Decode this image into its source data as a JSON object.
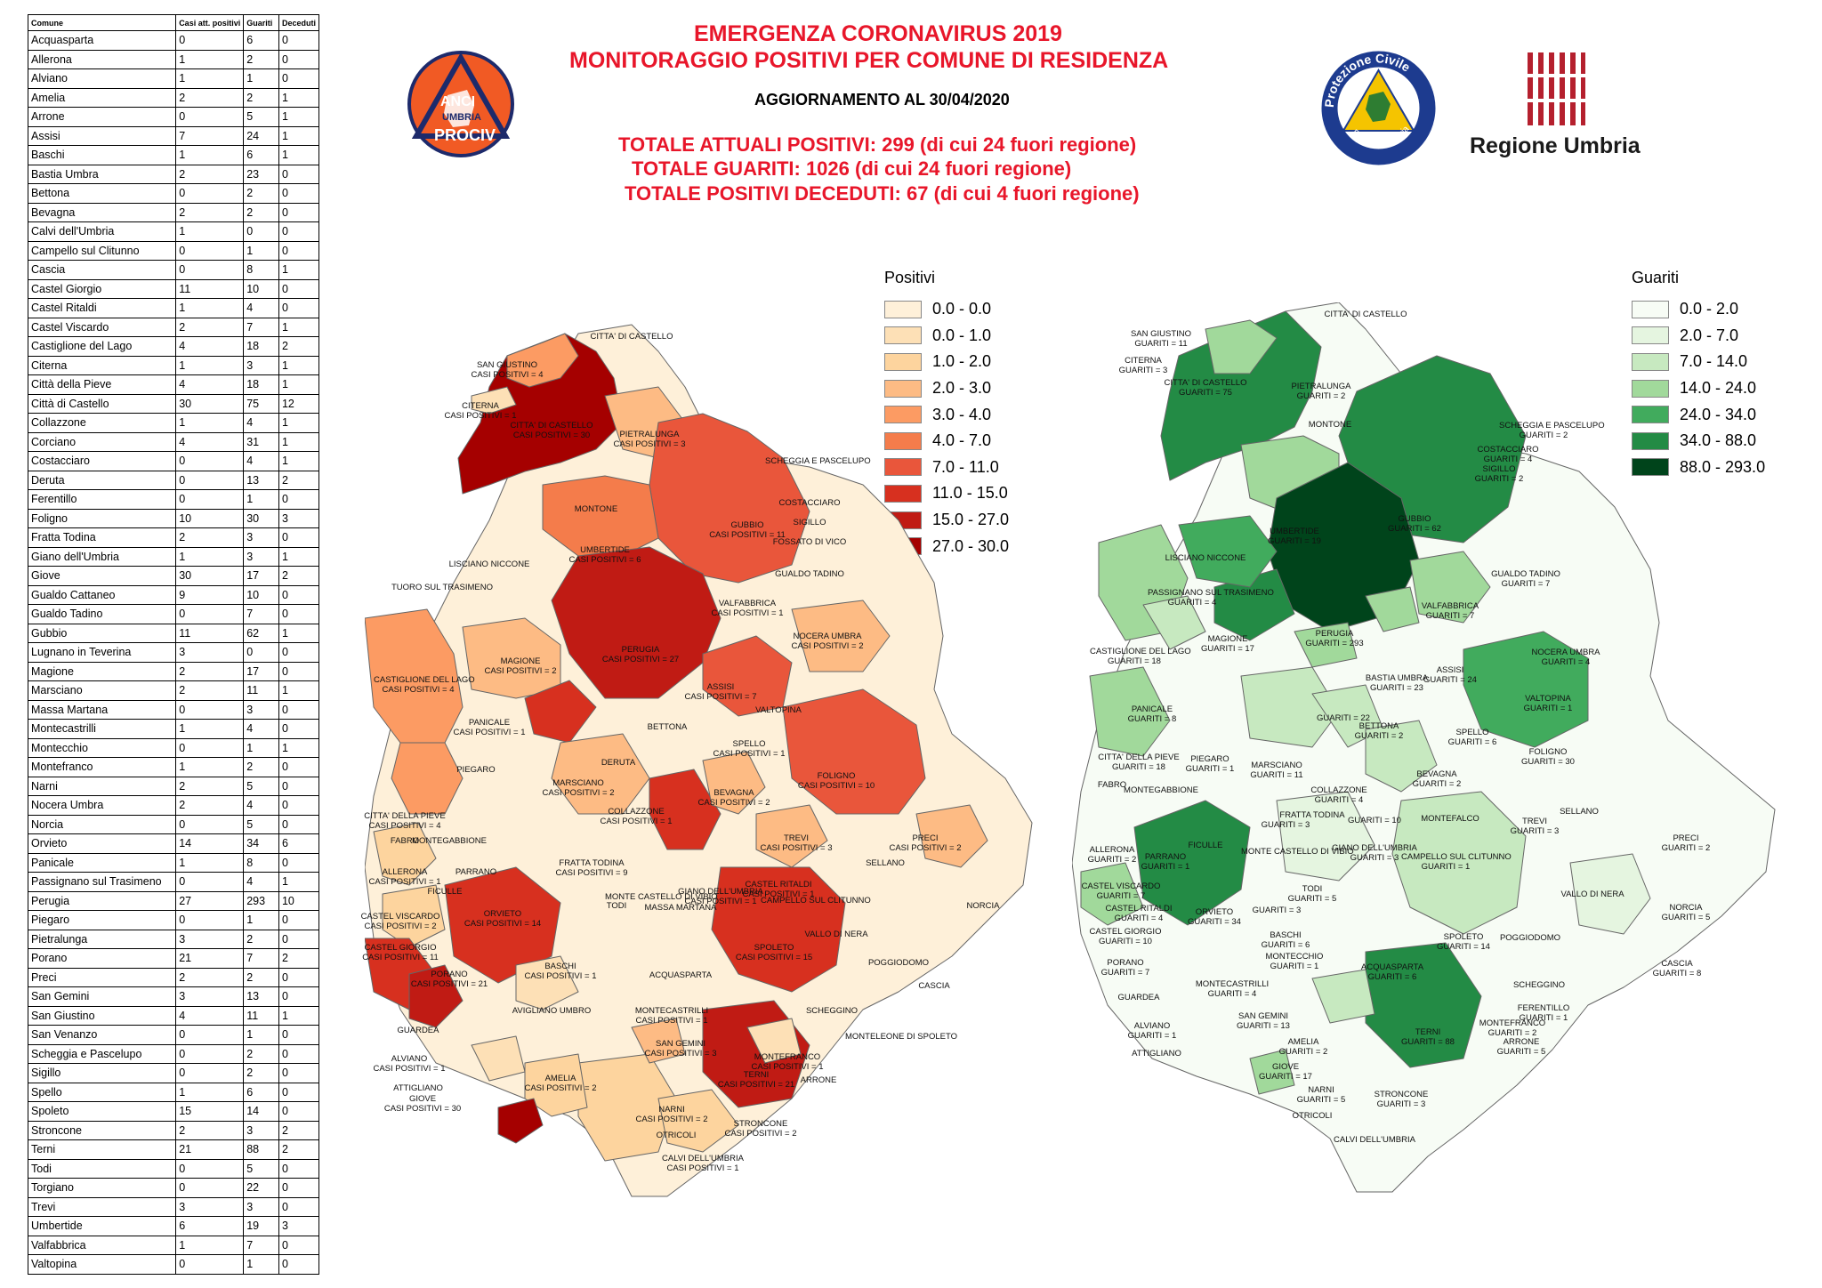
{
  "table": {
    "headers": [
      "Comune",
      "Casi att. positivi",
      "Guariti",
      "Deceduti"
    ],
    "rows": [
      [
        "Acquasparta",
        "0",
        "6",
        "0"
      ],
      [
        "Allerona",
        "1",
        "2",
        "0"
      ],
      [
        "Alviano",
        "1",
        "1",
        "0"
      ],
      [
        "Amelia",
        "2",
        "2",
        "1"
      ],
      [
        "Arrone",
        "0",
        "5",
        "1"
      ],
      [
        "Assisi",
        "7",
        "24",
        "1"
      ],
      [
        "Baschi",
        "1",
        "6",
        "1"
      ],
      [
        "Bastia Umbra",
        "2",
        "23",
        "0"
      ],
      [
        "Bettona",
        "0",
        "2",
        "0"
      ],
      [
        "Bevagna",
        "2",
        "2",
        "0"
      ],
      [
        "Calvi dell'Umbria",
        "1",
        "0",
        "0"
      ],
      [
        "Campello sul Clitunno",
        "0",
        "1",
        "0"
      ],
      [
        "Cascia",
        "0",
        "8",
        "1"
      ],
      [
        "Castel Giorgio",
        "11",
        "10",
        "0"
      ],
      [
        "Castel Ritaldi",
        "1",
        "4",
        "0"
      ],
      [
        "Castel Viscardo",
        "2",
        "7",
        "1"
      ],
      [
        "Castiglione del Lago",
        "4",
        "18",
        "2"
      ],
      [
        "Citerna",
        "1",
        "3",
        "1"
      ],
      [
        "Città  della Pieve",
        "4",
        "18",
        "1"
      ],
      [
        "Città  di Castello",
        "30",
        "75",
        "12"
      ],
      [
        "Collazzone",
        "1",
        "4",
        "1"
      ],
      [
        "Corciano",
        "4",
        "31",
        "1"
      ],
      [
        "Costacciaro",
        "0",
        "4",
        "1"
      ],
      [
        "Deruta",
        "0",
        "13",
        "2"
      ],
      [
        "Ferentillo",
        "0",
        "1",
        "0"
      ],
      [
        "Foligno",
        "10",
        "30",
        "3"
      ],
      [
        "Fratta Todina",
        "2",
        "3",
        "0"
      ],
      [
        "Giano dell'Umbria",
        "1",
        "3",
        "1"
      ],
      [
        "Giove",
        "30",
        "17",
        "2"
      ],
      [
        "Gualdo Cattaneo",
        "9",
        "10",
        "0"
      ],
      [
        "Gualdo Tadino",
        "0",
        "7",
        "0"
      ],
      [
        "Gubbio",
        "11",
        "62",
        "1"
      ],
      [
        "Lugnano in Teverina",
        "3",
        "0",
        "0"
      ],
      [
        "Magione",
        "2",
        "17",
        "0"
      ],
      [
        "Marsciano",
        "2",
        "11",
        "1"
      ],
      [
        "Massa Martana",
        "0",
        "3",
        "0"
      ],
      [
        "Montecastrilli",
        "1",
        "4",
        "0"
      ],
      [
        "Montecchio",
        "0",
        "1",
        "1"
      ],
      [
        "Montefranco",
        "1",
        "2",
        "0"
      ],
      [
        "Narni",
        "2",
        "5",
        "0"
      ],
      [
        "Nocera Umbra",
        "2",
        "4",
        "0"
      ],
      [
        "Norcia",
        "0",
        "5",
        "0"
      ],
      [
        "Orvieto",
        "14",
        "34",
        "6"
      ],
      [
        "Panicale",
        "1",
        "8",
        "0"
      ],
      [
        "Passignano sul Trasimeno",
        "0",
        "4",
        "1"
      ],
      [
        "Perugia",
        "27",
        "293",
        "10"
      ],
      [
        "Piegaro",
        "0",
        "1",
        "0"
      ],
      [
        "Pietralunga",
        "3",
        "2",
        "0"
      ],
      [
        "Porano",
        "21",
        "7",
        "2"
      ],
      [
        "Preci",
        "2",
        "2",
        "0"
      ],
      [
        "San Gemini",
        "3",
        "13",
        "0"
      ],
      [
        "San Giustino",
        "4",
        "11",
        "1"
      ],
      [
        "San Venanzo",
        "0",
        "1",
        "0"
      ],
      [
        "Scheggia e Pascelupo",
        "0",
        "2",
        "0"
      ],
      [
        "Sigillo",
        "0",
        "2",
        "0"
      ],
      [
        "Spello",
        "1",
        "6",
        "0"
      ],
      [
        "Spoleto",
        "15",
        "14",
        "0"
      ],
      [
        "Stroncone",
        "2",
        "3",
        "2"
      ],
      [
        "Terni",
        "21",
        "88",
        "2"
      ],
      [
        "Todi",
        "0",
        "5",
        "0"
      ],
      [
        "Torgiano",
        "0",
        "22",
        "0"
      ],
      [
        "Trevi",
        "3",
        "3",
        "0"
      ],
      [
        "Umbertide",
        "6",
        "19",
        "3"
      ],
      [
        "Valfabbrica",
        "1",
        "7",
        "0"
      ],
      [
        "Valtopina",
        "0",
        "1",
        "0"
      ]
    ]
  },
  "header": {
    "title_line1": "EMERGENZA CORONAVIRUS 2019",
    "title_line2": "MONITORAGGIO POSITIVI PER COMUNE DI RESIDENZA",
    "update": "AGGIORNAMENTO AL 30/04/2020",
    "total_positives": "TOTALE ATTUALI POSITIVI: 299 (di cui 24 fuori regione)",
    "total_recovered": "TOTALE GUARITI: 1026 (di cui 24 fuori regione)",
    "total_deceased": "TOTALE POSITIVI DECEDUTI: 67 (di cui 4 fuori regione)"
  },
  "logos": {
    "anci": {
      "line1": "ANCI",
      "line2": "UMBRIA",
      "line3": "PROCIV",
      "color": "#f15a24"
    },
    "protezione_civile": {
      "top": "Protezione Civile",
      "bottom": "Regione Umbria"
    },
    "regione": {
      "name": "Regione Umbria",
      "color": "#b5202e"
    }
  },
  "legend_positivi": {
    "title": "Positivi",
    "items": [
      {
        "label": "0.0 - 0.0",
        "color": "#fef0d9"
      },
      {
        "label": "0.0 - 1.0",
        "color": "#fde0b6"
      },
      {
        "label": "1.0 - 2.0",
        "color": "#fdd49e"
      },
      {
        "label": "2.0 - 3.0",
        "color": "#fdbb84"
      },
      {
        "label": "3.0 - 4.0",
        "color": "#fc9b63"
      },
      {
        "label": "4.0 - 7.0",
        "color": "#f47c4b"
      },
      {
        "label": "7.0 - 11.0",
        "color": "#e9563b"
      },
      {
        "label": "11.0 - 15.0",
        "color": "#d7301f"
      },
      {
        "label": "15.0 - 27.0",
        "color": "#c01b14"
      },
      {
        "label": "27.0 - 30.0",
        "color": "#a50000"
      }
    ]
  },
  "legend_guariti": {
    "title": "Guariti",
    "items": [
      {
        "label": "0.0 - 2.0",
        "color": "#f7fcf5"
      },
      {
        "label": "2.0 - 7.0",
        "color": "#e5f5e0"
      },
      {
        "label": "7.0 - 14.0",
        "color": "#c7e9c0"
      },
      {
        "label": "14.0 - 24.0",
        "color": "#a1d99b"
      },
      {
        "label": "24.0 - 34.0",
        "color": "#41ab5d"
      },
      {
        "label": "34.0 - 88.0",
        "color": "#238b45"
      },
      {
        "label": "88.0 - 293.0",
        "color": "#00441b"
      }
    ]
  },
  "map_positivi_labels": [
    "CITTA' DI CASTELLO",
    "SAN GIUSTINO",
    "CASI POSITIVI = 4",
    "CITERNA",
    "CASI POSITIVI = 1",
    "CITTA' DI CASTELLO",
    "CASI POSITIVI = 30",
    "PIETRALUNGA",
    "CASI POSITIVI = 3",
    "SCHEGGIA E PASCELUPO",
    "MONTONE",
    "COSTACCIARO",
    "GUBBIO",
    "CASI POSITIVI = 11",
    "SIGILLO",
    "FOSSATO DI VICO",
    "UMBERTIDE",
    "CASI POSITIVI = 6",
    "LISCIANO NICCONE",
    "GUALDO TADINO",
    "TUORO SUL TRASIMENO",
    "VALFABBRICA",
    "CASI POSITIVI = 1",
    "PERUGIA",
    "CASI POSITIVI = 27",
    "NOCERA UMBRA",
    "CASI POSITIVI = 2",
    "MAGIONE",
    "CASI POSITIVI = 2",
    "CASTIGLIONE DEL LAGO",
    "CASI POSITIVI = 4",
    "ASSISI",
    "CASI POSITIVI = 7",
    "VALTOPINA",
    "PANICALE",
    "CASI POSITIVI = 1",
    "BETTONA",
    "SPELLO",
    "CASI POSITIVI = 1",
    "FOLIGNO",
    "CASI POSITIVI = 10",
    "PIEGARO",
    "DERUTA",
    "MARSCIANO",
    "CASI POSITIVI = 2",
    "BEVAGNA",
    "CASI POSITIVI = 2",
    "CITTA' DELLA PIEVE",
    "CASI POSITIVI = 4",
    "COLLAZZONE",
    "CASI POSITIVI = 1",
    "FABRO",
    "MONTEGABBIONE",
    "SELLANO",
    "FRATTA TODINA",
    "CASI POSITIVI = 9",
    "TREVI",
    "CASI POSITIVI = 3",
    "PRECI",
    "CASI POSITIVI = 2",
    "PARRANO",
    "FICULLE",
    "ALLERONA",
    "CASI POSITIVI = 1",
    "MONTE CASTELLO DI VIBIO",
    "GIANO DELL'UMBRIA",
    "CASI POSITIVI = 1",
    "CAMPELLO SUL CLITUNNO",
    "CASTEL RITALDI",
    "CASI POSITIVI = 1",
    "CASTEL VISCARDO",
    "CASI POSITIVI = 2",
    "ORVIETO",
    "CASI POSITIVI = 14",
    "TODI",
    "MASSA MARTANA",
    "CASTEL GIORGIO",
    "CASI POSITIVI = 11",
    "PORANO",
    "CASI POSITIVI = 21",
    "BASCHI",
    "CASI POSITIVI = 1",
    "SPOLETO",
    "CASI POSITIVI = 15",
    "VALLO DI NERA",
    "NORCIA",
    "POGGIODOMO",
    "CASCIA",
    "ACQUASPARTA",
    "SCHEGGINO",
    "GUARDEA",
    "AVIGLIANO UMBRO",
    "MONTECASTRILLI",
    "CASI POSITIVI = 1",
    "MONTELEONE DI SPOLETO",
    "SAN GEMINI",
    "CASI POSITIVI = 3",
    "ALVIANO",
    "CASI POSITIVI = 1",
    "AMELIA",
    "CASI POSITIVI = 2",
    "MONTEFRANCO",
    "CASI POSITIVI = 1",
    "TERNI",
    "CASI POSITIVI = 21",
    "ARRONE",
    "ATTIGLIANO",
    "GIOVE",
    "CASI POSITIVI = 30",
    "NARNI",
    "CASI POSITIVI = 2",
    "STRONCONE",
    "CASI POSITIVI = 2",
    "OTRICOLI",
    "CALVI DELL'UMBRIA",
    "CASI POSITIVI = 1"
  ],
  "map_guariti_labels": [
    "CITTA' DI CASTELLO",
    "SAN GIUSTINO",
    "GUARITI = 11",
    "CITERNA",
    "GUARITI = 3",
    "CITTA' DI CASTELLO",
    "GUARITI = 75",
    "PIETRALUNGA",
    "GUARITI = 2",
    "SCHEGGIA E PASCELUPO",
    "GUARITI = 2",
    "MONTONE",
    "COSTACCIARO",
    "GUARITI = 4",
    "SIGILLO",
    "GUARITI = 2",
    "GUBBIO",
    "GUARITI = 62",
    "UMBERTIDE",
    "GUARITI = 19",
    "LISCIANO NICCONE",
    "GUALDO TADINO",
    "GUARITI = 7",
    "PASSIGNANO SUL TRASIMENO",
    "GUARITI = 4",
    "VALFABBRICA",
    "GUARITI = 7",
    "PERUGIA",
    "GUARITI = 293",
    "CASTIGLIONE DEL LAGO",
    "GUARITI = 18",
    "MAGIONE",
    "GUARITI = 17",
    "NOCERA UMBRA",
    "GUARITI = 4",
    "ASSISI",
    "GUARITI = 24",
    "BASTIA UMBRA",
    "GUARITI = 23",
    "VALTOPINA",
    "GUARITI = 1",
    "PANICALE",
    "GUARITI = 8",
    "GUARITI = 22",
    "BETTONA",
    "GUARITI = 2",
    "SPELLO",
    "GUARITI = 6",
    "FOLIGNO",
    "GUARITI = 30",
    "CITTA' DELLA PIEVE",
    "GUARITI = 18",
    "PIEGARO",
    "GUARITI = 1",
    "MARSCIANO",
    "GUARITI = 11",
    "BEVAGNA",
    "GUARITI = 2",
    "COLLAZZONE",
    "GUARITI = 4",
    "FABRO",
    "MONTEGABBIONE",
    "FRATTA TODINA",
    "GUARITI = 3",
    "GUARITI = 10",
    "MONTEFALCO",
    "TREVI",
    "GUARITI = 3",
    "SELLANO",
    "PRECI",
    "GUARITI = 2",
    "ALLERONA",
    "GUARITI = 2",
    "FICULLE",
    "PARRANO",
    "GUARITI = 1",
    "MONTE CASTELLO DI VIBIO",
    "GIANO DELL'UMBRIA",
    "GUARITI = 3",
    "CAMPELLO SUL CLITUNNO",
    "GUARITI = 1",
    "CASTEL VISCARDO",
    "GUARITI = 7",
    "CASTEL RITALDI",
    "GUARITI = 4",
    "TODI",
    "GUARITI = 5",
    "GUARITI = 3",
    "VALLO DI NERA",
    "NORCIA",
    "GUARITI = 5",
    "ORVIETO",
    "GUARITI = 34",
    "CASTEL GIORGIO",
    "GUARITI = 10",
    "PORANO",
    "GUARITI = 7",
    "SPOLETO",
    "GUARITI = 14",
    "POGGIODOMO",
    "BASCHI",
    "GUARITI = 6",
    "MONTECCHIO",
    "GUARITI = 1",
    "ACQUASPARTA",
    "GUARITI = 6",
    "CASCIA",
    "GUARITI = 8",
    "SCHEGGINO",
    "GUARDEA",
    "MONTECASTRILLI",
    "GUARITI = 4",
    "FERENTILLO",
    "GUARITI = 1",
    "ALVIANO",
    "GUARITI = 1",
    "SAN GEMINI",
    "GUARITI = 13",
    "MONTEFRANCO",
    "GUARITI = 2",
    "TERNI",
    "GUARITI = 88",
    "ARRONE",
    "GUARITI = 5",
    "AMELIA",
    "GUARITI = 2",
    "ATTIGLIANO",
    "GIOVE",
    "GUARITI = 17",
    "NARNI",
    "GUARITI = 5",
    "STRONCONE",
    "GUARITI = 3",
    "OTRICOLI",
    "CALVI DELL'UMBRIA"
  ]
}
